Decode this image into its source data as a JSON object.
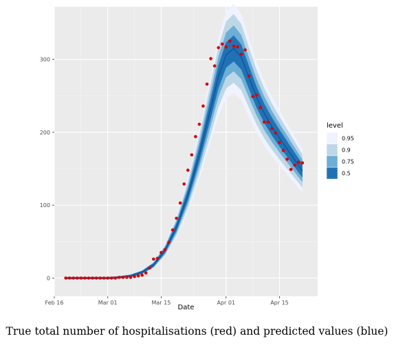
{
  "caption": "True total number of hospitalisations (red) and predicted values (blue)",
  "chart_data": {
    "type": "line",
    "xlabel": "Date",
    "ylabel": "",
    "x_range": [
      "2020-02-16",
      "2020-04-25"
    ],
    "ylim": [
      -25,
      372
    ],
    "x_ticks": [
      {
        "date": "2020-02-16",
        "label": "Feb 16"
      },
      {
        "date": "2020-03-01",
        "label": "Mar 01"
      },
      {
        "date": "2020-03-15",
        "label": "Mar 15"
      },
      {
        "date": "2020-04-01",
        "label": "Apr 01"
      },
      {
        "date": "2020-04-15",
        "label": "Apr 15"
      }
    ],
    "y_ticks": [
      0,
      100,
      200,
      300
    ],
    "grid": true,
    "legend": {
      "title": "level",
      "position": "right",
      "levels": [
        "0.95",
        "0.9",
        "0.75",
        "0.5"
      ],
      "colors": [
        "#eff3ff",
        "#bdd7e7",
        "#6baed6",
        "#2171b5"
      ]
    },
    "colors": {
      "panel": "#ebebeb",
      "grid_major": "#ffffff",
      "grid_minor": "#f5f5f5",
      "observed_points": "#e00000",
      "median_line": "#08519c"
    },
    "series": [
      {
        "type": "points",
        "dates": [
          "2020-02-19",
          "2020-02-20",
          "2020-02-21",
          "2020-02-22",
          "2020-02-23",
          "2020-02-24",
          "2020-02-25",
          "2020-02-26",
          "2020-02-27",
          "2020-02-28",
          "2020-02-29",
          "2020-03-01",
          "2020-03-02",
          "2020-03-03",
          "2020-03-04",
          "2020-03-05",
          "2020-03-06",
          "2020-03-07",
          "2020-03-08",
          "2020-03-09",
          "2020-03-10",
          "2020-03-11",
          "2020-03-12",
          "2020-03-13",
          "2020-03-14",
          "2020-03-15",
          "2020-03-16",
          "2020-03-17",
          "2020-03-18",
          "2020-03-19",
          "2020-03-20",
          "2020-03-21",
          "2020-03-22",
          "2020-03-23",
          "2020-03-24",
          "2020-03-25",
          "2020-03-26",
          "2020-03-27",
          "2020-03-28",
          "2020-03-29",
          "2020-03-30",
          "2020-03-31",
          "2020-04-01",
          "2020-04-02",
          "2020-04-03",
          "2020-04-04",
          "2020-04-05",
          "2020-04-06",
          "2020-04-07",
          "2020-04-08",
          "2020-04-09",
          "2020-04-10",
          "2020-04-11",
          "2020-04-12",
          "2020-04-13",
          "2020-04-14",
          "2020-04-15",
          "2020-04-16",
          "2020-04-17",
          "2020-04-18",
          "2020-04-19",
          "2020-04-20",
          "2020-04-21"
        ],
        "values": [
          0,
          0,
          0,
          0,
          0,
          0,
          0,
          0,
          0,
          0,
          0,
          0,
          0,
          0,
          1,
          1,
          1,
          1,
          2,
          3,
          4,
          7,
          14,
          26,
          27,
          35,
          39,
          49,
          66,
          82,
          103,
          129,
          148,
          169,
          194,
          211,
          236,
          266,
          301,
          291,
          316,
          321,
          317,
          325,
          318,
          317,
          307,
          313,
          277,
          249,
          251,
          234,
          214,
          214,
          205,
          199,
          186,
          175,
          163,
          149,
          155,
          159,
          158
        ]
      },
      {
        "type": "band_median",
        "dates": [
          "2020-02-19",
          "2020-02-25",
          "2020-03-01",
          "2020-03-04",
          "2020-03-07",
          "2020-03-10",
          "2020-03-13",
          "2020-03-16",
          "2020-03-19",
          "2020-03-22",
          "2020-03-25",
          "2020-03-28",
          "2020-03-30",
          "2020-04-01",
          "2020-04-03",
          "2020-04-05",
          "2020-04-07",
          "2020-04-09",
          "2020-04-11",
          "2020-04-13",
          "2020-04-15",
          "2020-04-17",
          "2020-04-19",
          "2020-04-21"
        ],
        "values": [
          0,
          0,
          0,
          1,
          3,
          8,
          18,
          38,
          70,
          114,
          170,
          233,
          276,
          306,
          315,
          303,
          275,
          248,
          226,
          208,
          192,
          177,
          162,
          147
        ]
      }
    ]
  }
}
